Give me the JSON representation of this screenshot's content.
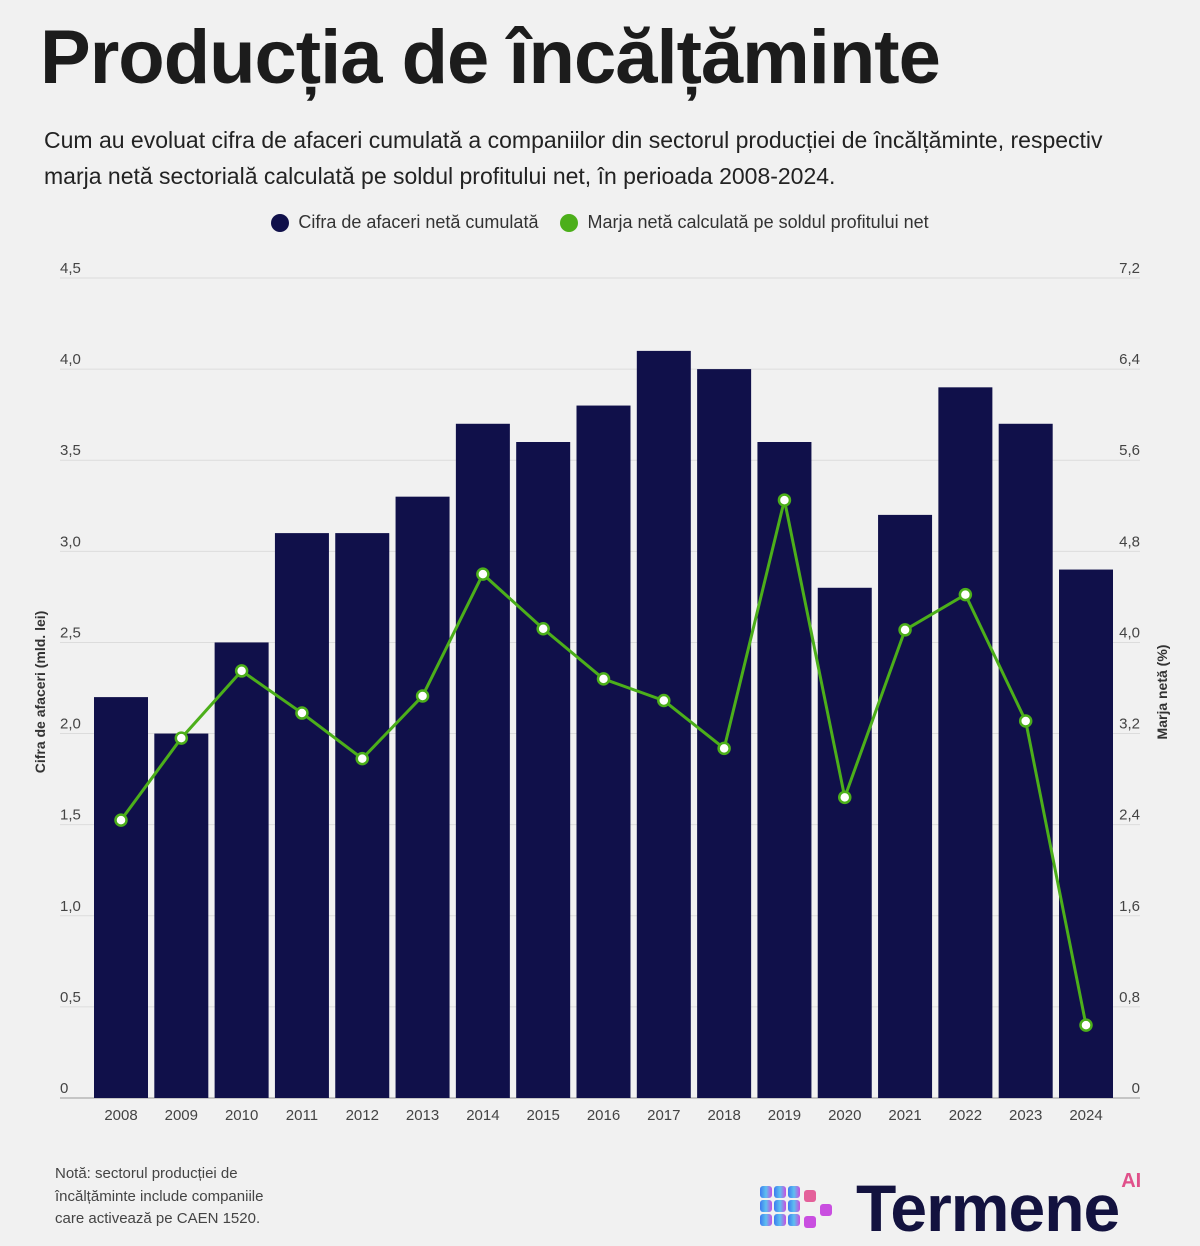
{
  "header": {
    "title": "Producția de încălțăminte",
    "subtitle": "Cum au evoluat cifra de afaceri cumulată a companiilor din sectorul producției de încălțăminte, respectiv marja netă sectorială calculată pe soldul profitului net, în perioada 2008-2024."
  },
  "chart_data": {
    "type": "bar+line",
    "categories": [
      "2008",
      "2009",
      "2010",
      "2011",
      "2012",
      "2013",
      "2014",
      "2015",
      "2016",
      "2017",
      "2018",
      "2019",
      "2020",
      "2021",
      "2022",
      "2023",
      "2024"
    ],
    "series": [
      {
        "name": "Cifra de afaceri netă cumulată",
        "type": "bar",
        "axis": "left",
        "color": "#10104a",
        "values": [
          2.2,
          2.0,
          2.5,
          3.1,
          3.1,
          3.3,
          3.7,
          3.6,
          3.8,
          4.1,
          4.0,
          3.6,
          2.8,
          3.2,
          3.9,
          3.7,
          2.9
        ]
      },
      {
        "name": "Marja netă calculată pe soldul profitului net",
        "type": "line",
        "axis": "right",
        "color": "#4caf1a",
        "values": [
          2.44,
          3.16,
          3.75,
          3.38,
          2.98,
          3.53,
          4.6,
          4.12,
          3.68,
          3.49,
          3.07,
          5.25,
          2.64,
          4.11,
          4.42,
          3.31,
          0.64
        ]
      }
    ],
    "ylabel": "Cifra de afaceri (mld. lei)",
    "y2label": "Marja netă (%)",
    "ylim": [
      0,
      4.5
    ],
    "y2lim": [
      0,
      7.2
    ],
    "yticks": [
      "0",
      "0,5",
      "1,0",
      "1,5",
      "2,0",
      "2,5",
      "3,0",
      "3,5",
      "4,0",
      "4,5"
    ],
    "y2ticks": [
      "0",
      "0,8",
      "1,6",
      "2,4",
      "3,2",
      "4,0",
      "4,8",
      "5,6",
      "6,4",
      "7,2"
    ],
    "grid": true,
    "legend": "top-center"
  },
  "footer": {
    "note": "Notă: sectorul producției de încălțăminte include companiile care activează pe CAEN 1520.",
    "logo_text": "Termene",
    "logo_badge": "AI"
  }
}
